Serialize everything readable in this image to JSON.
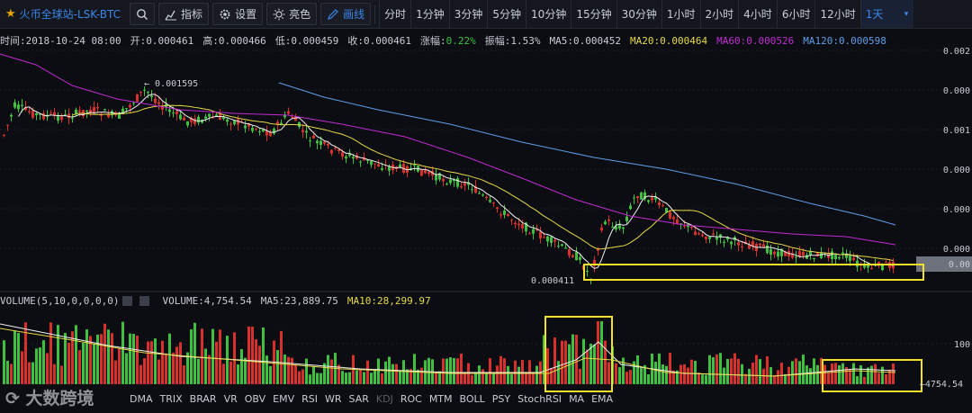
{
  "toolbar": {
    "title": "火币全球站-LSK-BTC",
    "indicator_label": "指标",
    "settings_label": "设置",
    "theme_label": "亮色",
    "draw_label": "画线",
    "periods": [
      "分时",
      "1分钟",
      "3分钟",
      "5分钟",
      "10分钟",
      "15分钟",
      "30分钟",
      "1小时",
      "2小时",
      "4小时",
      "6小时",
      "12小时",
      "1天"
    ],
    "active_period": "1天"
  },
  "info": {
    "time": "时间:2018-10-24 08:00",
    "open": "开:0.000461",
    "high": "高:0.000466",
    "low": "低:0.000459",
    "close": "收:0.000461",
    "change_label": "涨幅:",
    "change_value": "0.22%",
    "amplitude": "振幅:1.53%",
    "ma5": "MA5:0.000452",
    "ma20": "MA20:0.000464",
    "ma60": "MA60:0.000526",
    "ma120": "MA120:0.000598"
  },
  "price_axis": [
    "0.002",
    "0.000",
    "0.001",
    "0.000",
    "0.000",
    "0.000"
  ],
  "price_current": "0.00",
  "annotations": {
    "high": "← 0.001595",
    "low": "0.000411"
  },
  "volume": {
    "label": "VOLUME(5,10,0,0,0,0)",
    "value": "VOLUME:4,754.54",
    "ma5": "MA5:23,889.75",
    "ma10": "MA10:28,299.97",
    "axis_top": "100",
    "current": "←4754.54"
  },
  "indicators": [
    "DMA",
    "TRIX",
    "BRAR",
    "VR",
    "OBV",
    "EMV",
    "RSI",
    "WR",
    "SAR",
    "KDJ",
    "ROC",
    "MTM",
    "BOLL",
    "PSY",
    "StochRSI",
    "MA",
    "EMA"
  ],
  "watermark": "大数跨境",
  "colors": {
    "up": "#3fc13f",
    "down": "#d8312b",
    "ma5": "#f2f2f2",
    "ma20": "#e7d94a",
    "ma60": "#c12bd1",
    "ma120": "#5f9ee6",
    "highlight": "#f1e12a"
  }
}
